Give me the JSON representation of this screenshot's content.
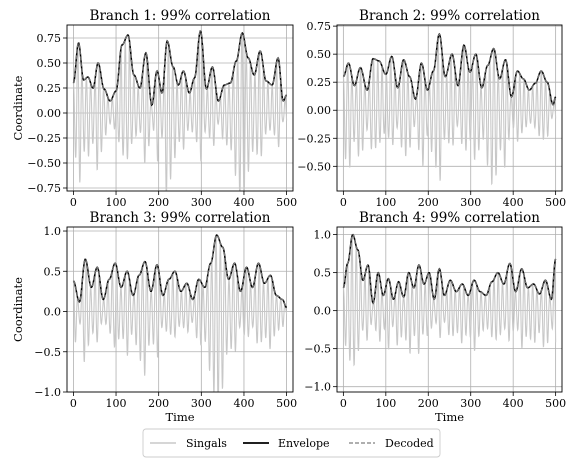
{
  "chart_data": [
    {
      "type": "line",
      "title": "Branch 1: 99% correlation",
      "ylabel": "Coordinate",
      "xlabel": "",
      "xlim": [
        -15,
        515
      ],
      "ylim": [
        -0.78,
        0.88
      ],
      "xticks": [
        0,
        100,
        200,
        300,
        400,
        500
      ],
      "yticks": [
        -0.75,
        -0.5,
        -0.25,
        0.0,
        0.25,
        0.5,
        0.75
      ],
      "ytick_labels": [
        "−0.75",
        "−0.50",
        "−0.25",
        "0.00",
        "0.25",
        "0.50",
        "0.75"
      ],
      "grid": true,
      "envelope_x": [
        0,
        12,
        24,
        34,
        46,
        58,
        72,
        86,
        100,
        114,
        128,
        142,
        156,
        170,
        184,
        196,
        208,
        220,
        234,
        246,
        258,
        272,
        284,
        298,
        312,
        326,
        340,
        354,
        368,
        382,
        396,
        410,
        424,
        438,
        452,
        466,
        480,
        492,
        500
      ],
      "envelope_y": [
        0.3,
        0.7,
        0.33,
        0.36,
        0.25,
        0.5,
        0.24,
        0.12,
        0.22,
        0.68,
        0.78,
        0.38,
        0.25,
        0.6,
        0.08,
        0.42,
        0.2,
        0.72,
        0.46,
        0.28,
        0.42,
        0.2,
        0.35,
        0.82,
        0.24,
        0.46,
        0.12,
        0.28,
        0.3,
        0.52,
        0.8,
        0.55,
        0.38,
        0.62,
        0.32,
        0.28,
        0.55,
        0.12,
        0.18
      ],
      "signal_min": -0.75,
      "series": [
        {
          "name": "Singals",
          "color": "#c8c8c8"
        },
        {
          "name": "Envelope",
          "color": "#000000"
        },
        {
          "name": "Decoded",
          "color": "#7f7f7f"
        }
      ]
    },
    {
      "type": "line",
      "title": "Branch 2: 99% correlation",
      "ylabel": "",
      "xlabel": "",
      "xlim": [
        -15,
        515
      ],
      "ylim": [
        -0.72,
        0.76
      ],
      "xticks": [
        0,
        100,
        200,
        300,
        400,
        500
      ],
      "yticks": [
        -0.5,
        -0.25,
        0.0,
        0.25,
        0.5,
        0.75
      ],
      "ytick_labels": [
        "−0.50",
        "−0.25",
        "0.00",
        "0.25",
        "0.50",
        "0.75"
      ],
      "grid": true,
      "envelope_x": [
        0,
        12,
        26,
        40,
        56,
        70,
        84,
        100,
        114,
        128,
        142,
        156,
        170,
        184,
        198,
        212,
        226,
        240,
        256,
        270,
        284,
        298,
        312,
        326,
        340,
        354,
        368,
        382,
        396,
        410,
        424,
        438,
        452,
        466,
        480,
        494,
        500
      ],
      "envelope_y": [
        0.3,
        0.42,
        0.22,
        0.38,
        0.18,
        0.46,
        0.44,
        0.32,
        0.48,
        0.2,
        0.45,
        0.3,
        0.1,
        0.42,
        0.18,
        0.35,
        0.68,
        0.3,
        0.5,
        0.22,
        0.58,
        0.34,
        0.5,
        0.2,
        0.4,
        0.55,
        0.28,
        0.45,
        0.12,
        0.35,
        0.28,
        0.18,
        0.24,
        0.35,
        0.25,
        0.05,
        0.12
      ],
      "signal_min": -0.65,
      "series": [
        {
          "name": "Singals",
          "color": "#c8c8c8"
        },
        {
          "name": "Envelope",
          "color": "#000000"
        },
        {
          "name": "Decoded",
          "color": "#7f7f7f"
        }
      ]
    },
    {
      "type": "line",
      "title": "Branch 3: 99% correlation",
      "ylabel": "Coordinate",
      "xlabel": "Time",
      "xlim": [
        -15,
        515
      ],
      "ylim": [
        -1.0,
        1.05
      ],
      "xticks": [
        0,
        100,
        200,
        300,
        400,
        500
      ],
      "yticks": [
        -1.0,
        -0.5,
        0.0,
        0.5,
        1.0
      ],
      "ytick_labels": [
        "−1.0",
        "−0.5",
        "0.0",
        "0.5",
        "1.0"
      ],
      "grid": true,
      "envelope_x": [
        0,
        14,
        28,
        42,
        56,
        70,
        84,
        98,
        112,
        126,
        140,
        154,
        168,
        182,
        196,
        210,
        224,
        238,
        252,
        266,
        280,
        294,
        308,
        322,
        336,
        350,
        364,
        378,
        392,
        406,
        420,
        434,
        448,
        462,
        476,
        490,
        500
      ],
      "envelope_y": [
        0.38,
        0.12,
        0.65,
        0.3,
        0.55,
        0.15,
        0.4,
        0.6,
        0.3,
        0.5,
        0.2,
        0.45,
        0.62,
        0.25,
        0.58,
        0.2,
        0.4,
        0.5,
        0.25,
        0.35,
        0.15,
        0.4,
        0.3,
        0.6,
        0.95,
        0.8,
        0.4,
        0.6,
        0.25,
        0.55,
        0.3,
        0.6,
        0.35,
        0.45,
        0.2,
        0.15,
        0.05
      ],
      "signal_min": -0.92,
      "series": [
        {
          "name": "Singals",
          "color": "#c8c8c8"
        },
        {
          "name": "Envelope",
          "color": "#000000"
        },
        {
          "name": "Decoded",
          "color": "#7f7f7f"
        }
      ]
    },
    {
      "type": "line",
      "title": "Branch 4: 99% correlation",
      "ylabel": "",
      "xlabel": "Time",
      "xlim": [
        -15,
        515
      ],
      "ylim": [
        -1.07,
        1.1
      ],
      "xticks": [
        0,
        100,
        200,
        300,
        400,
        500
      ],
      "yticks": [
        -1.0,
        -0.5,
        0.0,
        0.5,
        1.0
      ],
      "ytick_labels": [
        "−1.0",
        "−0.5",
        "0.0",
        "0.5",
        "1.0"
      ],
      "grid": true,
      "envelope_x": [
        0,
        10,
        22,
        34,
        46,
        58,
        70,
        82,
        94,
        106,
        118,
        130,
        142,
        154,
        166,
        178,
        190,
        202,
        214,
        226,
        238,
        252,
        266,
        280,
        294,
        308,
        322,
        336,
        350,
        364,
        378,
        392,
        406,
        420,
        434,
        448,
        462,
        476,
        490,
        500
      ],
      "envelope_y": [
        0.3,
        0.62,
        1.0,
        0.8,
        0.4,
        0.6,
        0.1,
        0.5,
        0.2,
        0.42,
        0.15,
        0.38,
        0.18,
        0.5,
        0.3,
        0.6,
        0.35,
        0.5,
        0.15,
        0.55,
        0.2,
        0.4,
        0.25,
        0.35,
        0.2,
        0.4,
        0.25,
        0.2,
        0.38,
        0.5,
        0.35,
        0.62,
        0.25,
        0.55,
        0.3,
        0.35,
        0.22,
        0.4,
        0.15,
        0.68
      ],
      "signal_min": -1.0,
      "series": [
        {
          "name": "Singals",
          "color": "#c8c8c8"
        },
        {
          "name": "Envelope",
          "color": "#000000"
        },
        {
          "name": "Decoded",
          "color": "#7f7f7f"
        }
      ]
    }
  ],
  "legend": {
    "placement": "bottom-center",
    "items": [
      {
        "label": "Singals",
        "color": "#c8c8c8"
      },
      {
        "label": "Envelope",
        "color": "#000000"
      },
      {
        "label": "Decoded",
        "color": "#7f7f7f"
      }
    ]
  }
}
